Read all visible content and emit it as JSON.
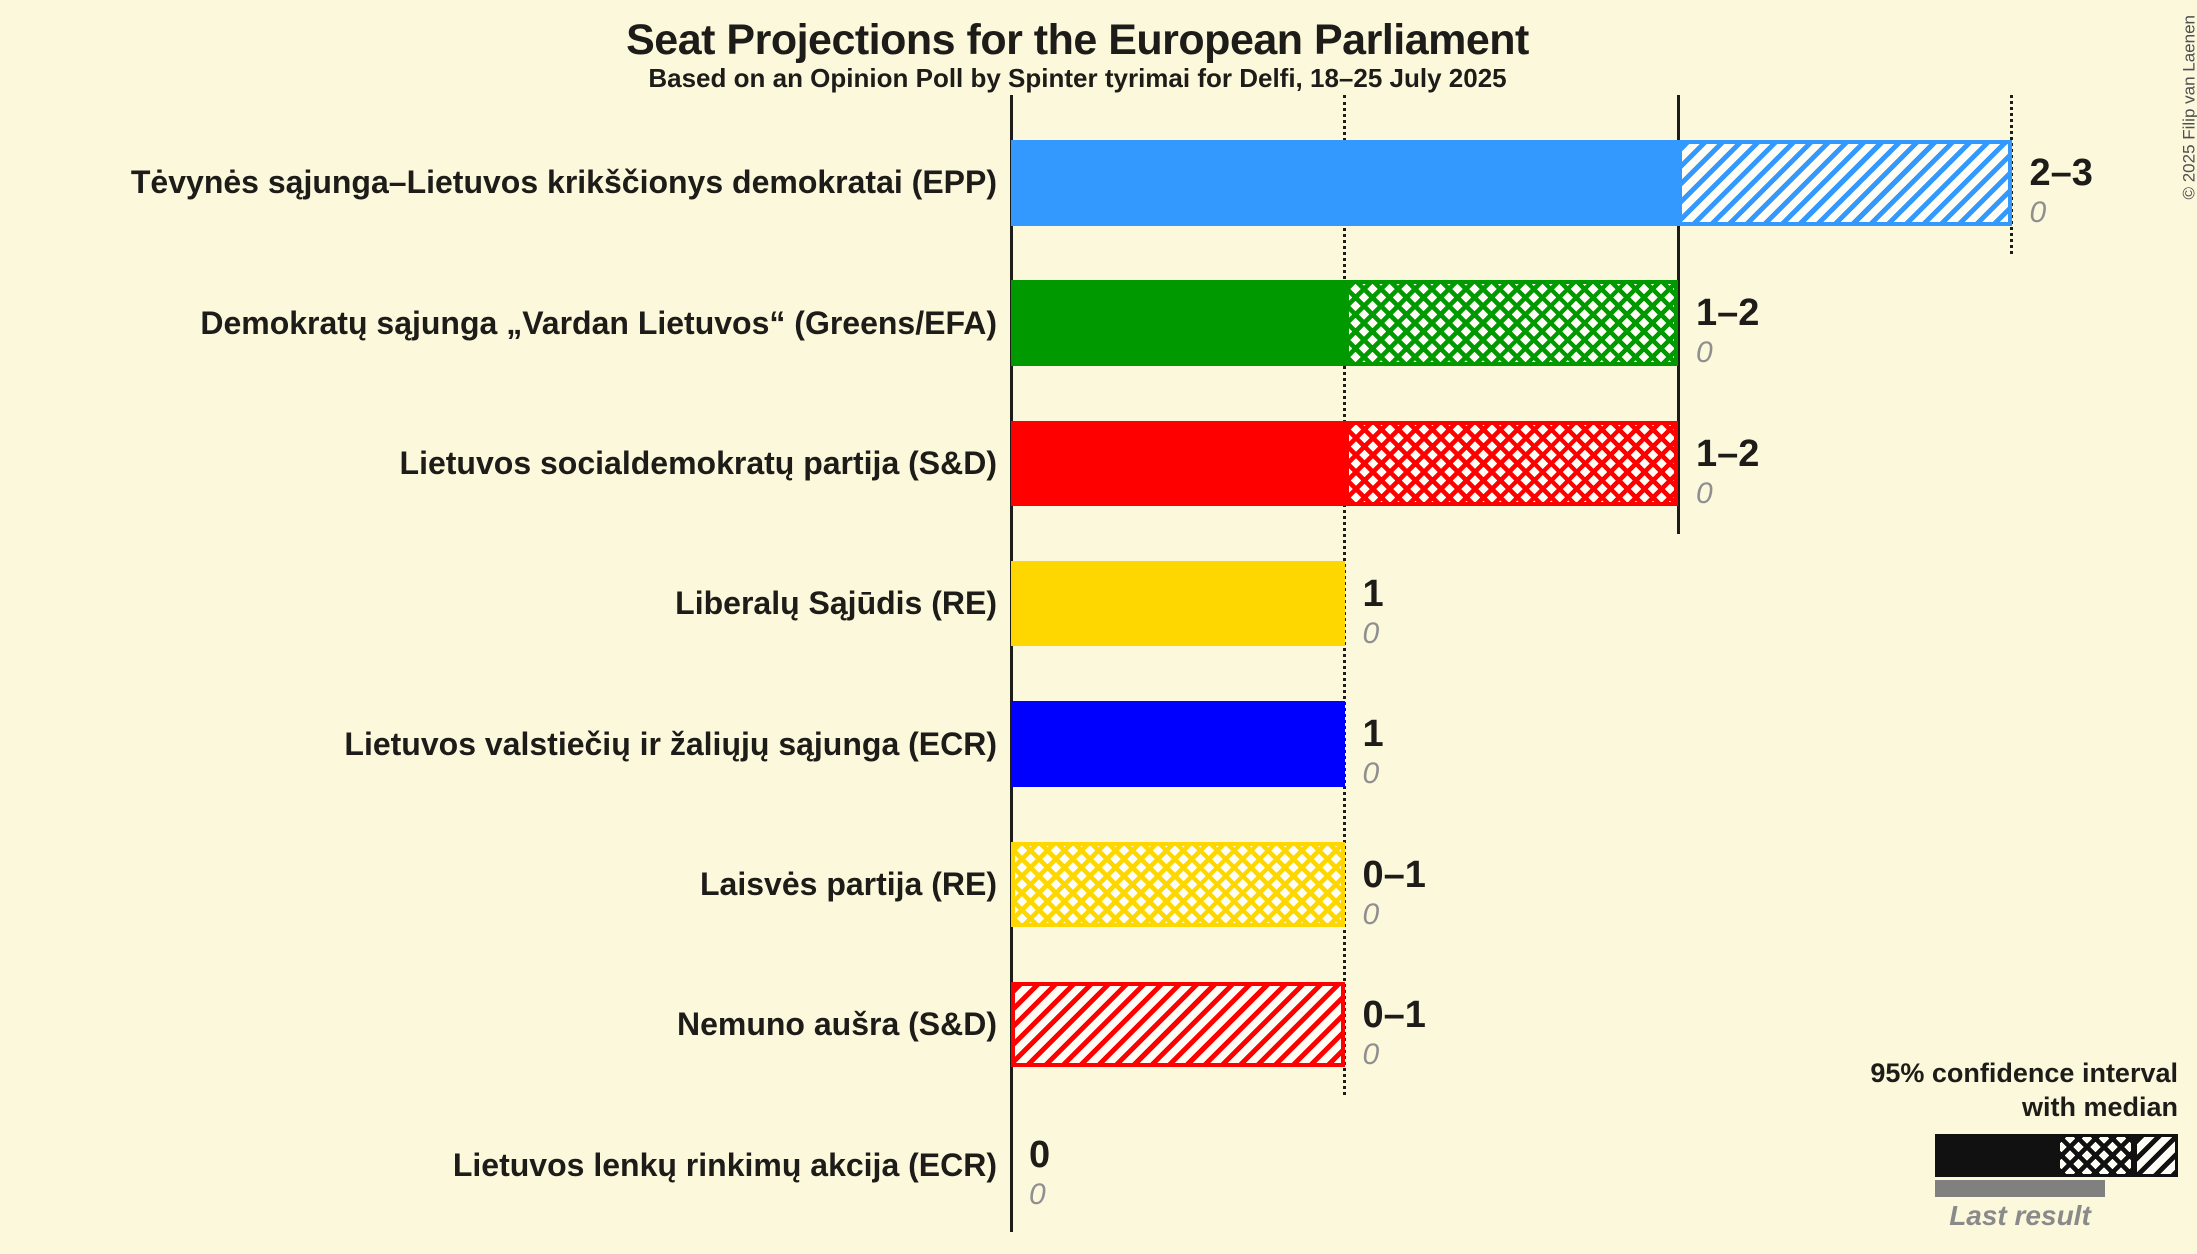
{
  "title": "Seat Projections for the European Parliament",
  "subtitle": "Based on an Opinion Poll by Spinter tyrimai for Delfi, 18–25 July 2025",
  "copyright": "© 2025 Filip van Laenen",
  "colors": {
    "background": "#fcf8dc",
    "text": "#1d1c18",
    "muted_gray": "#8f8f8f",
    "last_result_bar": "#808080"
  },
  "legend": {
    "line1": "95% confidence interval",
    "line2": "with median",
    "last_result_label": "Last result"
  },
  "chart_data": {
    "type": "bar",
    "orientation": "horizontal",
    "x_axis": {
      "min": 0,
      "max": 3,
      "unit": "seats",
      "gridlines": [
        {
          "seats": 0,
          "style": "solid"
        },
        {
          "seats": 1,
          "style": "dotted"
        },
        {
          "seats": 2,
          "style": "solid"
        },
        {
          "seats": 3,
          "style": "dotted"
        }
      ]
    },
    "parties": [
      {
        "name": "Tėvynės sąjunga–Lietuvos krikščionys demokratai (EPP)",
        "color": "#3399ff",
        "ci_low": 2,
        "median": 2,
        "ci_high": 3,
        "value_label": "2–3",
        "last_result": 0,
        "last_result_label": "0"
      },
      {
        "name": "Demokratų sąjunga „Vardan Lietuvos“ (Greens/EFA)",
        "color": "#009900",
        "ci_low": 1,
        "median": 2,
        "ci_high": 2,
        "value_label": "1–2",
        "last_result": 0,
        "last_result_label": "0"
      },
      {
        "name": "Lietuvos socialdemokratų partija (S&D)",
        "color": "#ff0000",
        "ci_low": 1,
        "median": 2,
        "ci_high": 2,
        "value_label": "1–2",
        "last_result": 0,
        "last_result_label": "0"
      },
      {
        "name": "Liberalų Sąjūdis (RE)",
        "color": "#ffd700",
        "ci_low": 1,
        "median": 1,
        "ci_high": 1,
        "value_label": "1",
        "last_result": 0,
        "last_result_label": "0"
      },
      {
        "name": "Lietuvos valstiečių ir žaliųjų sąjunga (ECR)",
        "color": "#0000ff",
        "ci_low": 1,
        "median": 1,
        "ci_high": 1,
        "value_label": "1",
        "last_result": 0,
        "last_result_label": "0"
      },
      {
        "name": "Laisvės partija (RE)",
        "color": "#ffd700",
        "ci_low": 0,
        "median": 1,
        "ci_high": 1,
        "value_label": "0–1",
        "last_result": 0,
        "last_result_label": "0"
      },
      {
        "name": "Nemuno aušra (S&D)",
        "color": "#ff0000",
        "ci_low": 0,
        "median": 0,
        "ci_high": 1,
        "value_label": "0–1",
        "last_result": 0,
        "last_result_label": "0"
      },
      {
        "name": "Lietuvos lenkų rinkimų akcija (ECR)",
        "color": "#888888",
        "ci_low": 0,
        "median": 0,
        "ci_high": 0,
        "value_label": "0",
        "last_result": 0,
        "last_result_label": "0"
      }
    ]
  }
}
